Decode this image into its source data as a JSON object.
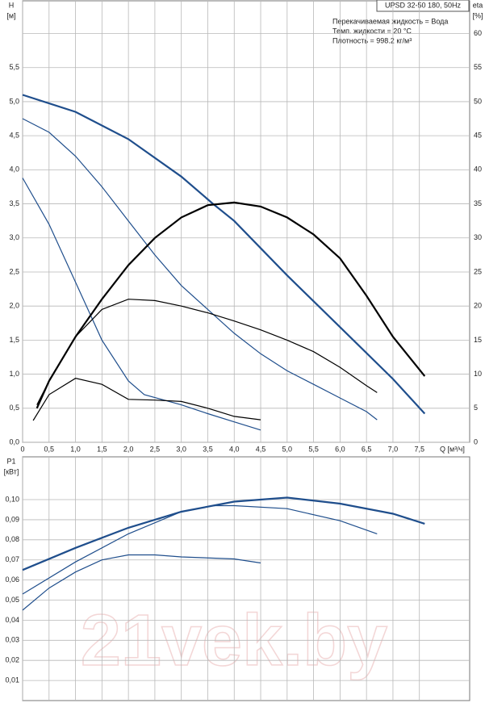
{
  "chart_data": [
    {
      "type": "line",
      "info_box": "UPSD 32-50 180, 50Hz",
      "info_lines": [
        "Перекачиваемая жидкость = Вода",
        "Темп. жидкости = 20 °C",
        "Плотность = 998.2 кг/м³"
      ],
      "ylabel": "H",
      "yunit": "[м]",
      "y2label": "eta",
      "y2unit": "[%]",
      "xlabel": "Q [м³/ч]",
      "xlim": [
        0,
        8.45
      ],
      "ylim": [
        0,
        6.48
      ],
      "y2lim": [
        0,
        64.8
      ],
      "xticks": [
        0,
        {
          "value": 0.5,
          "label": "0,5"
        },
        {
          "value": 1,
          "label": "1,0"
        },
        {
          "value": 1.5,
          "label": "1,5"
        },
        {
          "value": 2,
          "label": "2,0"
        },
        {
          "value": 2.5,
          "label": "2,5"
        },
        {
          "value": 3,
          "label": "3,0"
        },
        {
          "value": 3.5,
          "label": "3,5"
        },
        {
          "value": 4,
          "label": "4,0"
        },
        {
          "value": 4.5,
          "label": "4,5"
        },
        {
          "value": 5,
          "label": "5,0"
        },
        {
          "value": 5.5,
          "label": "5,5"
        },
        {
          "value": 6,
          "label": "6,0"
        },
        {
          "value": 6.5,
          "label": "6,5"
        },
        {
          "value": 7,
          "label": "7,0"
        },
        {
          "value": 7.5,
          "label": "7,5"
        }
      ],
      "yticks": [
        {
          "value": 0,
          "label": "0,0"
        },
        {
          "value": 0.5,
          "label": "0,5"
        },
        {
          "value": 1,
          "label": "1,0"
        },
        {
          "value": 1.5,
          "label": "1,5"
        },
        {
          "value": 2,
          "label": "2,0"
        },
        {
          "value": 2.5,
          "label": "2,5"
        },
        {
          "value": 3,
          "label": "3,0"
        },
        {
          "value": 3.5,
          "label": "3,5"
        },
        {
          "value": 4,
          "label": "4,0"
        },
        {
          "value": 4.5,
          "label": "4,5"
        },
        {
          "value": 5,
          "label": "5,0"
        },
        {
          "value": 5.5,
          "label": "5,5"
        }
      ],
      "y2ticks": [
        0,
        5,
        10,
        15,
        20,
        25,
        30,
        35,
        40,
        45,
        50,
        55,
        60
      ],
      "grid": true,
      "series": [
        {
          "color": "#1f4e8c",
          "width": 2.2,
          "x": [
            0,
            1,
            2,
            3,
            3.6,
            4,
            5,
            6,
            7,
            7.6
          ],
          "values": [
            5.1,
            4.85,
            4.45,
            3.9,
            3.5,
            3.25,
            2.45,
            1.69,
            0.93,
            0.42
          ]
        },
        {
          "color": "#1f4e8c",
          "width": 1.2,
          "x": [
            0,
            0.5,
            1,
            1.5,
            2,
            2.5,
            3,
            3.5,
            4,
            4.5,
            5,
            5.5,
            6,
            6.5,
            6.7
          ],
          "values": [
            4.75,
            4.55,
            4.2,
            3.75,
            3.25,
            2.75,
            2.3,
            1.95,
            1.6,
            1.3,
            1.05,
            0.85,
            0.65,
            0.45,
            0.33
          ]
        },
        {
          "color": "#1f4e8c",
          "width": 1.2,
          "x": [
            0,
            0.5,
            1,
            1.5,
            2,
            2.3,
            3,
            3.5,
            4,
            4.5
          ],
          "values": [
            3.88,
            3.2,
            2.35,
            1.5,
            0.9,
            0.7,
            0.55,
            0.42,
            0.3,
            0.18
          ]
        },
        {
          "color": "#000000",
          "width": 2.2,
          "axis": "y2",
          "x": [
            0.27,
            0.5,
            1,
            1.5,
            2,
            2.5,
            3,
            3.5,
            4,
            4.5,
            5,
            5.5,
            6,
            6.5,
            7,
            7.6
          ],
          "values": [
            5,
            9,
            15.5,
            21,
            26,
            30,
            33,
            34.8,
            35.2,
            34.6,
            33,
            30.5,
            27,
            21.5,
            15.5,
            9.7
          ]
        },
        {
          "color": "#000000",
          "width": 1.2,
          "axis": "y2",
          "x": [
            0.27,
            0.5,
            1,
            1.5,
            2,
            2.5,
            3,
            3.5,
            4,
            4.5,
            5,
            5.5,
            6,
            6.5,
            6.7
          ],
          "values": [
            5.5,
            9,
            15.5,
            19.5,
            21,
            20.8,
            20,
            19,
            17.8,
            16.5,
            15,
            13.3,
            11,
            8.3,
            7.3
          ]
        },
        {
          "color": "#000000",
          "width": 1.2,
          "axis": "y2",
          "x": [
            0.2,
            0.5,
            1,
            1.5,
            2,
            2.5,
            3,
            3.5,
            4,
            4.5
          ],
          "values": [
            3.2,
            7,
            9.4,
            8.5,
            6.3,
            6.2,
            6,
            5,
            3.8,
            3.3
          ]
        }
      ]
    },
    {
      "type": "line",
      "ylabel": "P1",
      "yunit": "[кВт]",
      "watermark": "21vek.by",
      "xlim": [
        0,
        8.45
      ],
      "ylim": [
        0,
        0.1213
      ],
      "yticks": [
        {
          "value": 0.01,
          "label": "0,01"
        },
        {
          "value": 0.02,
          "label": "0,02"
        },
        {
          "value": 0.03,
          "label": "0,03"
        },
        {
          "value": 0.04,
          "label": "0,04"
        },
        {
          "value": 0.05,
          "label": "0,05"
        },
        {
          "value": 0.06,
          "label": "0,06"
        },
        {
          "value": 0.07,
          "label": "0,07"
        },
        {
          "value": 0.08,
          "label": "0,08"
        },
        {
          "value": 0.09,
          "label": "0,09"
        },
        {
          "value": 0.1,
          "label": "0,10"
        }
      ],
      "grid": true,
      "series": [
        {
          "color": "#1f4e8c",
          "width": 2.2,
          "x": [
            0,
            1,
            2,
            3,
            4,
            5,
            6,
            7,
            7.6
          ],
          "values": [
            0.065,
            0.076,
            0.086,
            0.094,
            0.099,
            0.101,
            0.098,
            0.093,
            0.088
          ]
        },
        {
          "color": "#1f4e8c",
          "width": 1.2,
          "x": [
            0,
            1,
            2,
            3,
            3.6,
            4,
            5,
            6,
            6.7
          ],
          "values": [
            0.053,
            0.069,
            0.083,
            0.094,
            0.097,
            0.097,
            0.0955,
            0.0895,
            0.083
          ]
        },
        {
          "color": "#1f4e8c",
          "width": 1.2,
          "x": [
            0,
            0.5,
            1,
            1.5,
            2,
            2.5,
            3,
            4,
            4.5
          ],
          "values": [
            0.045,
            0.056,
            0.064,
            0.07,
            0.0725,
            0.0725,
            0.0715,
            0.0705,
            0.0685
          ]
        }
      ]
    }
  ]
}
